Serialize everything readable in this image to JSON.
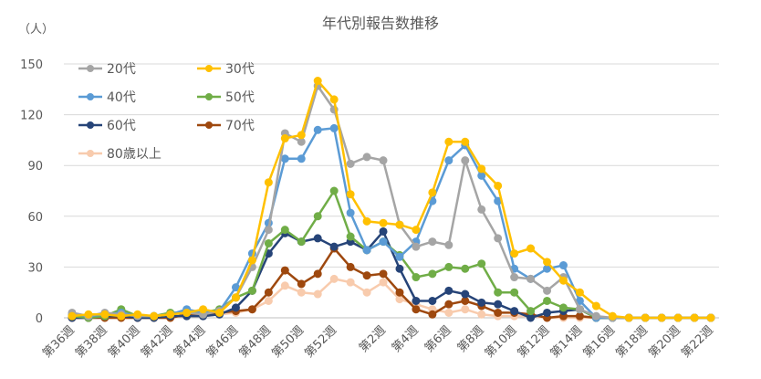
{
  "chart_data": {
    "type": "line",
    "title": "年代別報告数推移",
    "ylabel": "（人）",
    "xlabel": "",
    "ylim": [
      0,
      150
    ],
    "yticks": [
      0,
      30,
      60,
      90,
      120,
      150
    ],
    "grid": true,
    "legend_position": "top-left",
    "categories": [
      "第36週",
      "第37週",
      "第38週",
      "第39週",
      "第40週",
      "第41週",
      "第42週",
      "第43週",
      "第44週",
      "第45週",
      "第46週",
      "第47週",
      "第48週",
      "第49週",
      "第50週",
      "第51週",
      "第52週",
      "第53週",
      "第1週",
      "第2週",
      "第3週",
      "第4週",
      "第5週",
      "第6週",
      "第7週",
      "第8週",
      "第9週",
      "第10週",
      "第11週",
      "第12週",
      "第13週",
      "第14週",
      "第15週",
      "第16週",
      "第17週",
      "第18週",
      "第19週",
      "第20週",
      "第21週",
      "第22週"
    ],
    "tick_labels": [
      "第36週",
      "第38週",
      "第40週",
      "第42週",
      "第44週",
      "第46週",
      "第48週",
      "第50週",
      "第52週",
      "第2週",
      "第4週",
      "第6週",
      "第8週",
      "第10週",
      "第12週",
      "第14週",
      "第16週",
      "第18週",
      "第20週",
      "第22週"
    ],
    "series": [
      {
        "name": "20代",
        "color": "#a5a5a5",
        "values": [
          3,
          1,
          3,
          2,
          1,
          1,
          2,
          3,
          2,
          4,
          12,
          30,
          52,
          109,
          104,
          137,
          123,
          91,
          95,
          93,
          55,
          42,
          45,
          43,
          93,
          64,
          47,
          24,
          23,
          16,
          24,
          5,
          1,
          0,
          0,
          0,
          0,
          0,
          0,
          0
        ]
      },
      {
        "name": "30代",
        "color": "#ffc000",
        "values": [
          1,
          2,
          2,
          1,
          2,
          1,
          2,
          3,
          5,
          3,
          12,
          34,
          80,
          106,
          108,
          140,
          129,
          73,
          57,
          56,
          55,
          52,
          74,
          104,
          104,
          88,
          78,
          38,
          41,
          33,
          22,
          15,
          7,
          1,
          0,
          0,
          0,
          0,
          0,
          0
        ]
      },
      {
        "name": "40代",
        "color": "#5b9bd5",
        "values": [
          2,
          1,
          2,
          3,
          1,
          1,
          2,
          5,
          3,
          4,
          18,
          38,
          56,
          94,
          94,
          111,
          112,
          62,
          40,
          45,
          36,
          45,
          69,
          93,
          102,
          84,
          69,
          29,
          23,
          29,
          31,
          10,
          0,
          0,
          0,
          0,
          0,
          0,
          0,
          0
        ]
      },
      {
        "name": "50代",
        "color": "#70ad47",
        "values": [
          1,
          0,
          1,
          5,
          1,
          1,
          3,
          3,
          3,
          5,
          12,
          16,
          44,
          52,
          45,
          60,
          75,
          48,
          40,
          45,
          37,
          24,
          26,
          30,
          29,
          32,
          15,
          15,
          4,
          10,
          6,
          5,
          0,
          0,
          0,
          0,
          0,
          0,
          0,
          0
        ]
      },
      {
        "name": "60代",
        "color": "#264478",
        "values": [
          0,
          0,
          1,
          1,
          0,
          0,
          1,
          1,
          1,
          2,
          6,
          16,
          38,
          50,
          45,
          47,
          42,
          45,
          40,
          51,
          29,
          10,
          10,
          16,
          14,
          9,
          8,
          4,
          0,
          3,
          4,
          5,
          0,
          0,
          0,
          0,
          0,
          0,
          0,
          0
        ]
      },
      {
        "name": "70代",
        "color": "#9e480e",
        "values": [
          0,
          0,
          0,
          0,
          0,
          0,
          0,
          2,
          2,
          3,
          4,
          5,
          15,
          28,
          20,
          26,
          41,
          30,
          25,
          26,
          15,
          5,
          2,
          8,
          10,
          7,
          3,
          3,
          2,
          0,
          1,
          1,
          0,
          0,
          0,
          0,
          0,
          0,
          0,
          0
        ]
      },
      {
        "name": "80歳以上",
        "color": "#f8cbad",
        "values": [
          0,
          0,
          0,
          0,
          0,
          0,
          0,
          1,
          1,
          2,
          3,
          5,
          10,
          19,
          15,
          14,
          23,
          21,
          15,
          21,
          11,
          8,
          5,
          3,
          5,
          2,
          1,
          1,
          1,
          0,
          0,
          0,
          0,
          0,
          0,
          0,
          0,
          0,
          0,
          0
        ]
      }
    ]
  }
}
